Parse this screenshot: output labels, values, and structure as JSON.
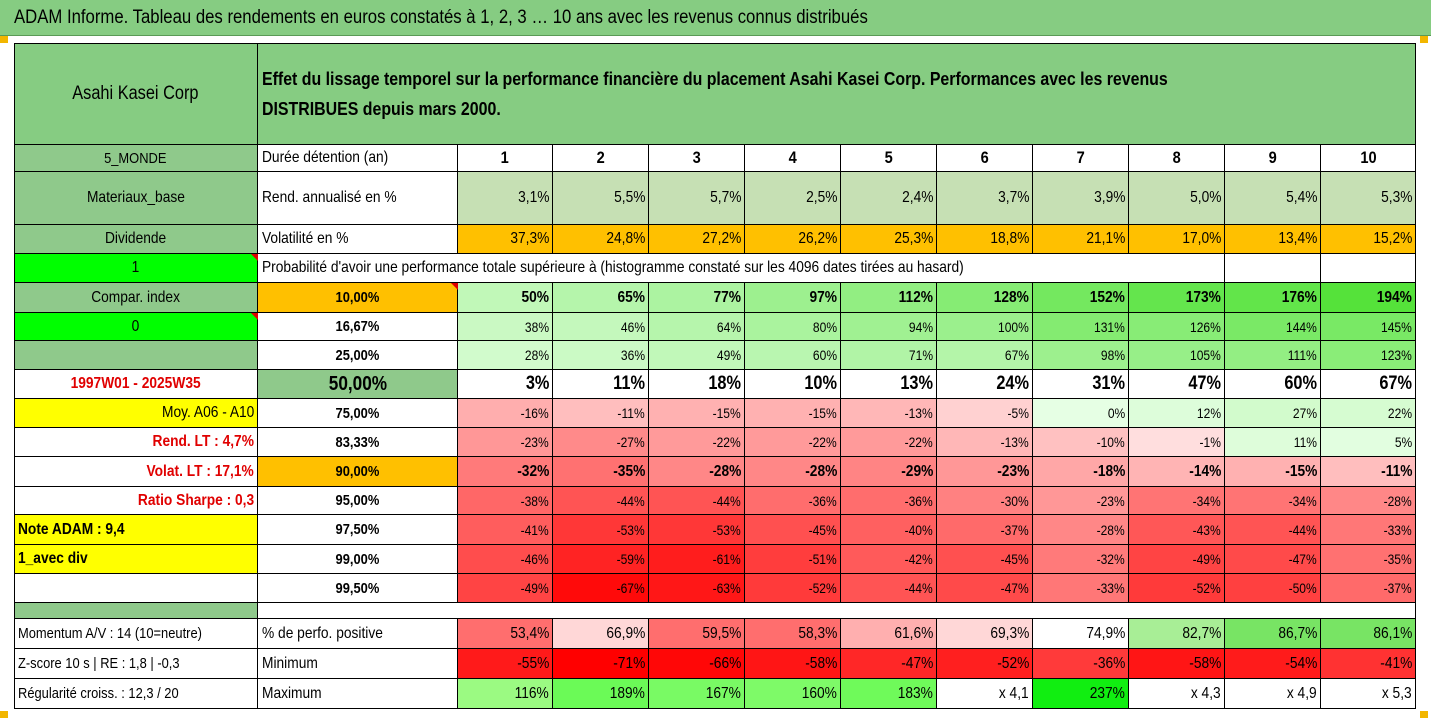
{
  "title": "ADAM Informe. Tableau des rendements en euros constatés à 1, 2, 3 … 10 ans avec les revenus connus distribués",
  "company": "Asahi Kasei Corp",
  "description": "Effet du lissage temporel sur la performance financière du placement Asahi Kasei Corp. Performances avec les revenus DISTRIBUES depuis mars 2000.",
  "left_panel": {
    "region": "5_MONDE",
    "sector": "Materiaux_base",
    "dividend_label": "Dividende",
    "dividend_value": "1",
    "compar_label": "Compar. index",
    "compar_value": "0",
    "period": "1997W01 - 2025W35",
    "moy": "Moy. A06 - A10",
    "rend_lt": "Rend. LT :    4,7%",
    "volat_lt": "Volat. LT :   17,1%",
    "sharpe": "Ratio Sharpe :    0,3",
    "note": "Note ADAM : 9,4",
    "avec_div": "1_avec div"
  },
  "header": {
    "label": "Durée détention (an)",
    "years": [
      "1",
      "2",
      "3",
      "4",
      "5",
      "6",
      "7",
      "8",
      "9",
      "10"
    ]
  },
  "rend": {
    "label": "Rend. annualisé en %",
    "values": [
      "3,1%",
      "5,5%",
      "5,7%",
      "2,5%",
      "2,4%",
      "3,7%",
      "3,9%",
      "5,0%",
      "5,4%",
      "5,3%"
    ]
  },
  "volat": {
    "label": "Volatilité en %",
    "values": [
      "37,3%",
      "24,8%",
      "27,2%",
      "26,2%",
      "25,3%",
      "18,8%",
      "21,1%",
      "17,0%",
      "13,4%",
      "15,2%"
    ]
  },
  "prob_title": "Probabilité d'avoir une performance totale supérieure à (histogramme constaté sur les 4096 dates tirées au hasard)",
  "quantiles": [
    {
      "p": "10,00%",
      "values": [
        "50%",
        "65%",
        "77%",
        "97%",
        "112%",
        "128%",
        "152%",
        "173%",
        "176%",
        "194%"
      ]
    },
    {
      "p": "16,67%",
      "values": [
        "38%",
        "46%",
        "64%",
        "80%",
        "94%",
        "100%",
        "131%",
        "126%",
        "144%",
        "145%"
      ]
    },
    {
      "p": "25,00%",
      "values": [
        "28%",
        "36%",
        "49%",
        "60%",
        "71%",
        "67%",
        "98%",
        "105%",
        "111%",
        "123%"
      ]
    },
    {
      "p": "50,00%",
      "values": [
        "3%",
        "11%",
        "18%",
        "10%",
        "13%",
        "24%",
        "31%",
        "47%",
        "60%",
        "67%"
      ]
    },
    {
      "p": "75,00%",
      "values": [
        "-16%",
        "-11%",
        "-15%",
        "-15%",
        "-13%",
        "-5%",
        "0%",
        "12%",
        "27%",
        "22%"
      ]
    },
    {
      "p": "83,33%",
      "values": [
        "-23%",
        "-27%",
        "-22%",
        "-22%",
        "-22%",
        "-13%",
        "-10%",
        "-1%",
        "11%",
        "5%"
      ]
    },
    {
      "p": "90,00%",
      "values": [
        "-32%",
        "-35%",
        "-28%",
        "-28%",
        "-29%",
        "-23%",
        "-18%",
        "-14%",
        "-15%",
        "-11%"
      ]
    },
    {
      "p": "95,00%",
      "values": [
        "-38%",
        "-44%",
        "-44%",
        "-36%",
        "-36%",
        "-30%",
        "-23%",
        "-34%",
        "-34%",
        "-28%"
      ]
    },
    {
      "p": "97,50%",
      "values": [
        "-41%",
        "-53%",
        "-53%",
        "-45%",
        "-40%",
        "-37%",
        "-28%",
        "-43%",
        "-44%",
        "-33%"
      ]
    },
    {
      "p": "99,00%",
      "values": [
        "-46%",
        "-59%",
        "-61%",
        "-51%",
        "-42%",
        "-45%",
        "-32%",
        "-49%",
        "-47%",
        "-35%"
      ]
    },
    {
      "p": "99,50%",
      "values": [
        "-49%",
        "-67%",
        "-63%",
        "-52%",
        "-44%",
        "-47%",
        "-33%",
        "-52%",
        "-50%",
        "-37%"
      ]
    }
  ],
  "bottom": [
    {
      "left": "Momentum A/V : 14 (10=neutre)",
      "label": "% de perfo. positive",
      "values": [
        "53,4%",
        "66,9%",
        "59,5%",
        "58,3%",
        "61,6%",
        "69,3%",
        "74,9%",
        "82,7%",
        "86,7%",
        "86,1%"
      ]
    },
    {
      "left": "Z-score 10 s  |  RE : 1,8  | -0,3",
      "label": "Minimum",
      "values": [
        "-55%",
        "-71%",
        "-66%",
        "-58%",
        "-47%",
        "-52%",
        "-36%",
        "-58%",
        "-54%",
        "-41%"
      ]
    },
    {
      "left": "Régularité croiss. : 12,3 / 20",
      "label": "Maximum",
      "values": [
        "116%",
        "189%",
        "167%",
        "160%",
        "183%",
        "x 4,1",
        "237%",
        "x 4,3",
        "x 4,9",
        "x 5,3"
      ]
    }
  ],
  "colors": {
    "header_green": "#86cc82",
    "mid_green": "#8fc98b",
    "bright_green": "#00ff00",
    "orange": "#ffc000",
    "yellow": "#ffff00",
    "red_text": "#e00000",
    "rend_fill": "#c6e0b4"
  }
}
